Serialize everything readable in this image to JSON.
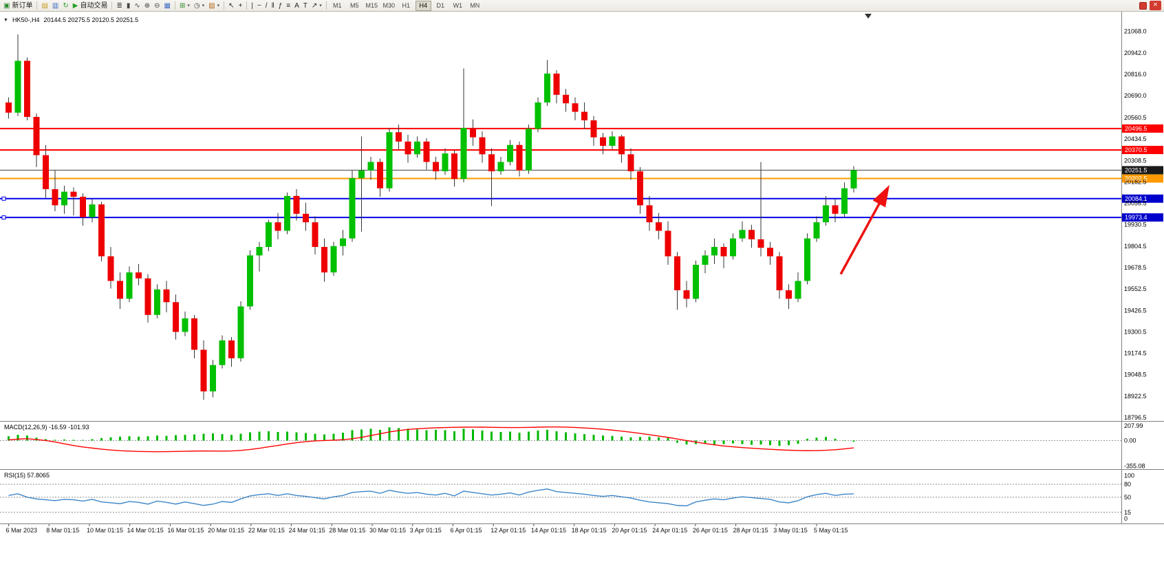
{
  "toolbar": {
    "items": [
      {
        "name": "new-order-button",
        "glyph": "▣",
        "color": "#2e8b2e",
        "label": "新订单"
      },
      {
        "type": "sep"
      },
      {
        "name": "charts-grid-icon",
        "glyph": "▤",
        "color": "#c89a1e"
      },
      {
        "name": "market-watch-icon",
        "glyph": "▥",
        "color": "#3a6bc4"
      },
      {
        "name": "refresh-icon",
        "glyph": "↻",
        "color": "#2e9b2e"
      },
      {
        "name": "auto-trading-button",
        "glyph": "▶",
        "color": "#25a125",
        "label": "自动交易"
      },
      {
        "type": "sep"
      },
      {
        "name": "bar-chart-icon",
        "glyph": "≣",
        "color": "#444444"
      },
      {
        "name": "candlestick-icon",
        "glyph": "▮",
        "color": "#444444"
      },
      {
        "name": "line-chart-icon",
        "glyph": "∿",
        "color": "#444444"
      },
      {
        "name": "zoom-in-icon",
        "glyph": "⊕",
        "color": "#444444"
      },
      {
        "name": "zoom-out-icon",
        "glyph": "⊖",
        "color": "#444444"
      },
      {
        "name": "tile-windows-icon",
        "glyph": "▦",
        "color": "#3a6bc4"
      },
      {
        "type": "sep"
      },
      {
        "name": "new-chart-icon",
        "glyph": "⊞",
        "color": "#2e8b2e",
        "caret": true
      },
      {
        "name": "period-icon",
        "glyph": "◷",
        "color": "#444444",
        "caret": true
      },
      {
        "name": "template-icon",
        "glyph": "▨",
        "color": "#b06a20",
        "caret": true
      },
      {
        "type": "sep"
      },
      {
        "name": "cursor-icon",
        "glyph": "↖",
        "color": "#222222"
      },
      {
        "name": "crosshair-icon",
        "glyph": "+",
        "color": "#222222"
      },
      {
        "type": "sep"
      },
      {
        "name": "vertical-line-icon",
        "glyph": "|",
        "color": "#222222"
      },
      {
        "name": "horizontal-line-icon",
        "glyph": "−",
        "color": "#222222"
      },
      {
        "name": "trendline-icon",
        "glyph": "/",
        "color": "#222222"
      },
      {
        "name": "channel-icon",
        "glyph": "‖",
        "color": "#222222"
      },
      {
        "name": "fibonacci-icon",
        "glyph": "ƒ",
        "color": "#222222"
      },
      {
        "name": "shapes-icon",
        "glyph": "≡",
        "color": "#222222"
      },
      {
        "name": "text-icon",
        "glyph": "A",
        "color": "#222222"
      },
      {
        "name": "text-label-icon",
        "glyph": "T",
        "color": "#222222"
      },
      {
        "name": "arrows-icon",
        "glyph": "↗",
        "color": "#222222",
        "caret": true
      },
      {
        "type": "sep"
      }
    ],
    "timeframes": [
      "M1",
      "M5",
      "M15",
      "M30",
      "H1",
      "H4",
      "D1",
      "W1",
      "MN"
    ],
    "active_timeframe": "H4",
    "close_glyph": "×"
  },
  "chart": {
    "header": {
      "marker": "▼",
      "symbol": "HK50-,H4",
      "ohlc": "20144.5 20275.5 20120.5 20251.5"
    }
  },
  "chart_data": {
    "type": "candlestick",
    "title": "HK50-,H4",
    "timeframe": "H4",
    "ohlc_header": [
      20144.5,
      20275.5,
      20120.5,
      20251.5
    ],
    "x_step": 13.5,
    "y_domain": [
      18776,
      21180
    ],
    "y_ticks": [
      21068.0,
      20942.0,
      20816.0,
      20690.0,
      20560.5,
      20434.5,
      20308.5,
      20182.5,
      20056.5,
      19930.5,
      19804.5,
      19678.5,
      19552.5,
      19426.5,
      19300.5,
      19174.5,
      19048.5,
      18922.5,
      18796.5
    ],
    "colors": {
      "up": "#00c000",
      "down": "#ee0000",
      "wick": "#333333",
      "macd_hist": "#00b800",
      "macd_signal": "#ff0000",
      "rsi": "#3d85c8"
    },
    "candles": [
      [
        20650,
        20680,
        20555,
        20590
      ],
      [
        20590,
        21050,
        20570,
        20895
      ],
      [
        20895,
        20915,
        20545,
        20565
      ],
      [
        20565,
        20585,
        20270,
        20340
      ],
      [
        20340,
        20400,
        20090,
        20140
      ],
      [
        20140,
        20250,
        20010,
        20045
      ],
      [
        20045,
        20160,
        19995,
        20125
      ],
      [
        20125,
        20150,
        19985,
        20095
      ],
      [
        20095,
        20115,
        19925,
        19975
      ],
      [
        19975,
        20080,
        19945,
        20050
      ],
      [
        20050,
        20065,
        19715,
        19745
      ],
      [
        19745,
        19800,
        19555,
        19600
      ],
      [
        19600,
        19650,
        19435,
        19495
      ],
      [
        19495,
        19685,
        19475,
        19650
      ],
      [
        19650,
        19700,
        19575,
        19615
      ],
      [
        19615,
        19640,
        19355,
        19400
      ],
      [
        19400,
        19580,
        19380,
        19550
      ],
      [
        19550,
        19600,
        19415,
        19475
      ],
      [
        19475,
        19520,
        19255,
        19300
      ],
      [
        19300,
        19420,
        19275,
        19380
      ],
      [
        19380,
        19400,
        19145,
        19195
      ],
      [
        19195,
        19250,
        18900,
        18950
      ],
      [
        18950,
        19135,
        18915,
        19105
      ],
      [
        19105,
        19280,
        19085,
        19250
      ],
      [
        19250,
        19270,
        19095,
        19145
      ],
      [
        19145,
        19480,
        19125,
        19450
      ],
      [
        19450,
        19780,
        19430,
        19750
      ],
      [
        19750,
        19830,
        19655,
        19800
      ],
      [
        19800,
        19960,
        19775,
        19945
      ],
      [
        19945,
        20000,
        19845,
        19895
      ],
      [
        19895,
        20120,
        19875,
        20100
      ],
      [
        20100,
        20140,
        19955,
        19995
      ],
      [
        19995,
        20060,
        19895,
        19945
      ],
      [
        19945,
        19980,
        19755,
        19800
      ],
      [
        19800,
        19850,
        19595,
        19650
      ],
      [
        19650,
        19830,
        19630,
        19805
      ],
      [
        19805,
        19900,
        19750,
        19850
      ],
      [
        19850,
        20250,
        19830,
        20205
      ],
      [
        20205,
        20450,
        19890,
        20250
      ],
      [
        20250,
        20330,
        20195,
        20300
      ],
      [
        20300,
        20320,
        20095,
        20145
      ],
      [
        20145,
        20500,
        20125,
        20475
      ],
      [
        20475,
        20520,
        20375,
        20420
      ],
      [
        20420,
        20460,
        20295,
        20345
      ],
      [
        20345,
        20450,
        20325,
        20420
      ],
      [
        20420,
        20440,
        20255,
        20300
      ],
      [
        20300,
        20330,
        20195,
        20245
      ],
      [
        20245,
        20380,
        20225,
        20350
      ],
      [
        20350,
        20370,
        20155,
        20200
      ],
      [
        20200,
        20850,
        20180,
        20500
      ],
      [
        20500,
        20550,
        20395,
        20445
      ],
      [
        20445,
        20480,
        20295,
        20345
      ],
      [
        20345,
        20380,
        20040,
        20245
      ],
      [
        20245,
        20330,
        20225,
        20300
      ],
      [
        20300,
        20430,
        20280,
        20400
      ],
      [
        20400,
        20420,
        20215,
        20250
      ],
      [
        20250,
        20520,
        20230,
        20495
      ],
      [
        20495,
        20680,
        20475,
        20650
      ],
      [
        20650,
        20900,
        20630,
        20820
      ],
      [
        20820,
        20840,
        20645,
        20695
      ],
      [
        20695,
        20730,
        20595,
        20645
      ],
      [
        20645,
        20680,
        20545,
        20595
      ],
      [
        20595,
        20650,
        20495,
        20545
      ],
      [
        20545,
        20570,
        20395,
        20445
      ],
      [
        20445,
        20470,
        20345,
        20395
      ],
      [
        20395,
        20480,
        20375,
        20450
      ],
      [
        20450,
        20460,
        20295,
        20345
      ],
      [
        20345,
        20380,
        20195,
        20245
      ],
      [
        20245,
        20270,
        19995,
        20045
      ],
      [
        20045,
        20100,
        19895,
        19945
      ],
      [
        19945,
        20000,
        19845,
        19895
      ],
      [
        19895,
        19950,
        19695,
        19745
      ],
      [
        19745,
        19770,
        19430,
        19545
      ],
      [
        19545,
        19600,
        19445,
        19495
      ],
      [
        19495,
        19720,
        19475,
        19695
      ],
      [
        19695,
        19780,
        19645,
        19750
      ],
      [
        19750,
        19850,
        19700,
        19800
      ],
      [
        19800,
        19820,
        19675,
        19745
      ],
      [
        19745,
        19880,
        19725,
        19850
      ],
      [
        19850,
        19950,
        19830,
        19900
      ],
      [
        19900,
        19930,
        19795,
        19845
      ],
      [
        19845,
        20300,
        19745,
        19795
      ],
      [
        19795,
        19830,
        19695,
        19745
      ],
      [
        19745,
        19770,
        19495,
        19545
      ],
      [
        19545,
        19580,
        19435,
        19495
      ],
      [
        19495,
        19650,
        19475,
        19600
      ],
      [
        19600,
        19880,
        19580,
        19850
      ],
      [
        19850,
        19980,
        19830,
        19945
      ],
      [
        19945,
        20100,
        19925,
        20045
      ],
      [
        20045,
        20080,
        19945,
        19995
      ],
      [
        19995,
        20180,
        19975,
        20145
      ],
      [
        20144.5,
        20275.5,
        20120.5,
        20251.5
      ]
    ],
    "x_labels": [
      {
        "t": "6 Mar 2023",
        "i": 0
      },
      {
        "t": "8 Mar 01:15",
        "i": 4.35
      },
      {
        "t": "10 Mar 01:15",
        "i": 8.7
      },
      {
        "t": "14 Mar 01:15",
        "i": 13.05
      },
      {
        "t": "16 Mar 01:15",
        "i": 17.4
      },
      {
        "t": "20 Mar 01:15",
        "i": 21.75
      },
      {
        "t": "22 Mar 01:15",
        "i": 26.1
      },
      {
        "t": "24 Mar 01:15",
        "i": 30.45
      },
      {
        "t": "28 Mar 01:15",
        "i": 34.8
      },
      {
        "t": "30 Mar 01:15",
        "i": 39.15
      },
      {
        "t": "3 Apr 01:15",
        "i": 43.5
      },
      {
        "t": "6 Apr 01:15",
        "i": 47.85
      },
      {
        "t": "12 Apr 01:15",
        "i": 52.2
      },
      {
        "t": "14 Apr 01:15",
        "i": 56.55
      },
      {
        "t": "18 Apr 01:15",
        "i": 60.9
      },
      {
        "t": "20 Apr 01:15",
        "i": 65.25
      },
      {
        "t": "24 Apr 01:15",
        "i": 69.6
      },
      {
        "t": "26 Apr 01:15",
        "i": 73.95
      },
      {
        "t": "28 Apr 01:15",
        "i": 78.3
      },
      {
        "t": "3 May 01:15",
        "i": 82.65
      },
      {
        "t": "5 May 01:15",
        "i": 87
      }
    ],
    "hlines": [
      {
        "price": 20496.5,
        "color": "#ff0000",
        "width": 2,
        "label": "20496.5",
        "label_bg": "#ff0000"
      },
      {
        "price": 20370.5,
        "color": "#ff0000",
        "width": 2,
        "label": "20370.5",
        "label_bg": "#ff0000"
      },
      {
        "price": 20251.5,
        "color": "#404040",
        "width": 1,
        "label": "20251.5",
        "label_bg": "#1a1a1a"
      },
      {
        "price": 20202.5,
        "color": "#ff9900",
        "width": 2,
        "label": "20202.5",
        "label_bg": "#ff9900"
      },
      {
        "price": 20084.1,
        "color": "#0000e6",
        "width": 2,
        "label": "20084.1",
        "label_bg": "#0000cc",
        "handle": true
      },
      {
        "price": 19973.4,
        "color": "#0000e6",
        "width": 2,
        "label": "19973.4",
        "label_bg": "#0000cc",
        "handle": true
      }
    ],
    "arrow": {
      "i1": 89.6,
      "p1": 19640,
      "i2": 94.6,
      "p2": 20140,
      "color": "#ee1111"
    },
    "shift_marker_x": 1262,
    "macd": {
      "label": "MACD(12,26,9) -16.59 -101.93",
      "values_current": [
        -16.59,
        -101.93
      ],
      "y_ticks": [
        207.99,
        0.0,
        -355.08
      ],
      "domain": [
        -380,
        235
      ],
      "hist": [
        60,
        80,
        70,
        40,
        20,
        10,
        15,
        10,
        8,
        20,
        35,
        45,
        55,
        60,
        55,
        60,
        70,
        65,
        75,
        80,
        85,
        95,
        100,
        90,
        80,
        95,
        115,
        125,
        130,
        120,
        125,
        115,
        105,
        95,
        85,
        95,
        110,
        145,
        155,
        165,
        150,
        185,
        175,
        165,
        155,
        145,
        150,
        145,
        130,
        165,
        155,
        140,
        125,
        120,
        125,
        110,
        125,
        140,
        150,
        130,
        115,
        100,
        90,
        80,
        70,
        65,
        55,
        45,
        50,
        55,
        45,
        35,
        -30,
        -55,
        -50,
        -40,
        -55,
        -50,
        -40,
        -50,
        -60,
        -55,
        -65,
        -75,
        -65,
        -45,
        25,
        40,
        50,
        25,
        5,
        -16.59
      ],
      "signal": [
        10,
        20,
        25,
        15,
        0,
        -20,
        -45,
        -70,
        -90,
        -105,
        -120,
        -132,
        -142,
        -148,
        -152,
        -155,
        -156,
        -155,
        -152,
        -150,
        -147,
        -145,
        -146,
        -148,
        -145,
        -138,
        -125,
        -108,
        -88,
        -68,
        -48,
        -30,
        -15,
        -5,
        0,
        5,
        12,
        25,
        45,
        70,
        95,
        120,
        140,
        155,
        165,
        172,
        178,
        182,
        185,
        187,
        188,
        187,
        185,
        183,
        182,
        182,
        184,
        187,
        190,
        190,
        188,
        183,
        176,
        168,
        158,
        146,
        132,
        117,
        100,
        82,
        63,
        44,
        22,
        0,
        -22,
        -42,
        -60,
        -75,
        -88,
        -98,
        -107,
        -115,
        -122,
        -129,
        -135,
        -139,
        -141,
        -140,
        -136,
        -128,
        -116,
        -101.93
      ]
    },
    "rsi": {
      "label": "RSI(15) 57.8065",
      "value_current": 57.8065,
      "levels": [
        80,
        50,
        15
      ],
      "y_ticks": [
        100,
        80,
        50,
        15,
        0
      ],
      "domain": [
        -6,
        107
      ],
      "values": [
        54,
        58,
        50,
        46,
        44,
        42,
        45,
        44,
        41,
        45,
        39,
        37,
        35,
        40,
        38,
        34,
        41,
        38,
        34,
        39,
        35,
        31,
        34,
        40,
        38,
        46,
        53,
        56,
        58,
        54,
        58,
        54,
        52,
        49,
        46,
        51,
        54,
        61,
        63,
        64,
        59,
        66,
        62,
        59,
        61,
        57,
        55,
        59,
        53,
        64,
        61,
        58,
        55,
        57,
        60,
        55,
        62,
        66,
        69,
        63,
        61,
        59,
        57,
        54,
        52,
        54,
        51,
        48,
        43,
        39,
        37,
        35,
        31,
        30,
        39,
        43,
        46,
        44,
        48,
        51,
        49,
        47,
        45,
        39,
        37,
        42,
        51,
        56,
        59,
        54,
        57,
        57.81
      ]
    }
  }
}
